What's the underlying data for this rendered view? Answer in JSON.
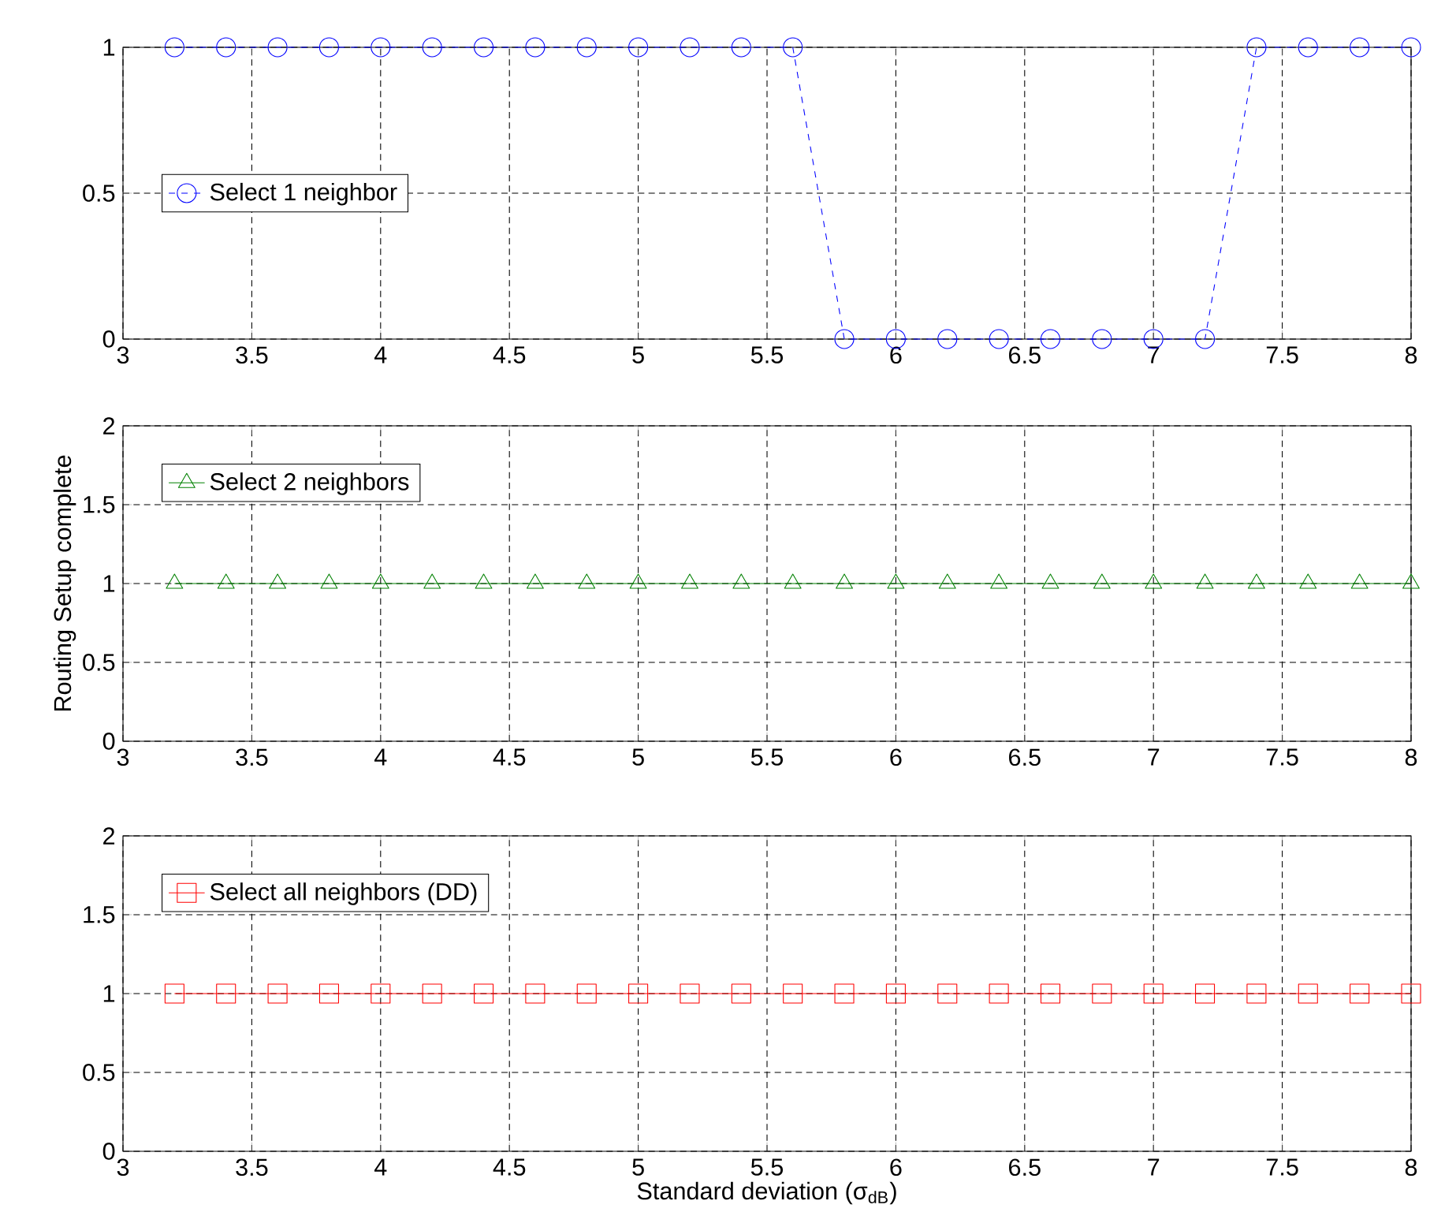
{
  "chart_data": [
    {
      "type": "line",
      "x": [
        3.2,
        3.4,
        3.6,
        3.8,
        4.0,
        4.2,
        4.4,
        4.6,
        4.8,
        5.0,
        5.2,
        5.4,
        5.6,
        5.8,
        6.0,
        6.2,
        6.4,
        6.6,
        6.8,
        7.0,
        7.2,
        7.4,
        7.6,
        7.8,
        8.0
      ],
      "series": [
        {
          "name": "Select 1 neighbor",
          "color": "#0000ff",
          "values": [
            1,
            1,
            1,
            1,
            1,
            1,
            1,
            1,
            1,
            1,
            1,
            1,
            1,
            0,
            0,
            0,
            0,
            0,
            0,
            0,
            0,
            1,
            1,
            1,
            1
          ]
        }
      ],
      "xlim": [
        3,
        8
      ],
      "ylim": [
        0,
        1
      ],
      "xticks": [
        3,
        3.5,
        4,
        4.5,
        5,
        5.5,
        6,
        6.5,
        7,
        7.5,
        8
      ],
      "yticks": [
        0,
        0.5,
        1
      ],
      "grid": true,
      "legend": "left",
      "marker": "circle",
      "line_style": "dashed"
    },
    {
      "type": "line",
      "x": [
        3.2,
        3.4,
        3.6,
        3.8,
        4.0,
        4.2,
        4.4,
        4.6,
        4.8,
        5.0,
        5.2,
        5.4,
        5.6,
        5.8,
        6.0,
        6.2,
        6.4,
        6.6,
        6.8,
        7.0,
        7.2,
        7.4,
        7.6,
        7.8,
        8.0
      ],
      "series": [
        {
          "name": "Select 2 neighbors",
          "color": "#008000",
          "values": [
            1,
            1,
            1,
            1,
            1,
            1,
            1,
            1,
            1,
            1,
            1,
            1,
            1,
            1,
            1,
            1,
            1,
            1,
            1,
            1,
            1,
            1,
            1,
            1,
            1
          ]
        }
      ],
      "ylabel": "Routing Setup complete",
      "xlim": [
        3,
        8
      ],
      "ylim": [
        0,
        2
      ],
      "xticks": [
        3,
        3.5,
        4,
        4.5,
        5,
        5.5,
        6,
        6.5,
        7,
        7.5,
        8
      ],
      "yticks": [
        0,
        0.5,
        1,
        1.5,
        2
      ],
      "grid": true,
      "legend": "top left",
      "marker": "triangle",
      "line_style": "solid"
    },
    {
      "type": "line",
      "x": [
        3.2,
        3.4,
        3.6,
        3.8,
        4.0,
        4.2,
        4.4,
        4.6,
        4.8,
        5.0,
        5.2,
        5.4,
        5.6,
        5.8,
        6.0,
        6.2,
        6.4,
        6.6,
        6.8,
        7.0,
        7.2,
        7.4,
        7.6,
        7.8,
        8.0
      ],
      "series": [
        {
          "name": "Select all neighbors (DD)",
          "color": "#ff0000",
          "values": [
            1,
            1,
            1,
            1,
            1,
            1,
            1,
            1,
            1,
            1,
            1,
            1,
            1,
            1,
            1,
            1,
            1,
            1,
            1,
            1,
            1,
            1,
            1,
            1,
            1
          ]
        }
      ],
      "xlabel": "Standard deviation (σ$_{dB}$)",
      "xlim": [
        3,
        8
      ],
      "ylim": [
        0,
        2
      ],
      "xticks": [
        3,
        3.5,
        4,
        4.5,
        5,
        5.5,
        6,
        6.5,
        7,
        7.5,
        8
      ],
      "yticks": [
        0,
        0.5,
        1,
        1.5,
        2
      ],
      "grid": true,
      "legend": "top left",
      "marker": "square",
      "line_style": "solid"
    }
  ]
}
